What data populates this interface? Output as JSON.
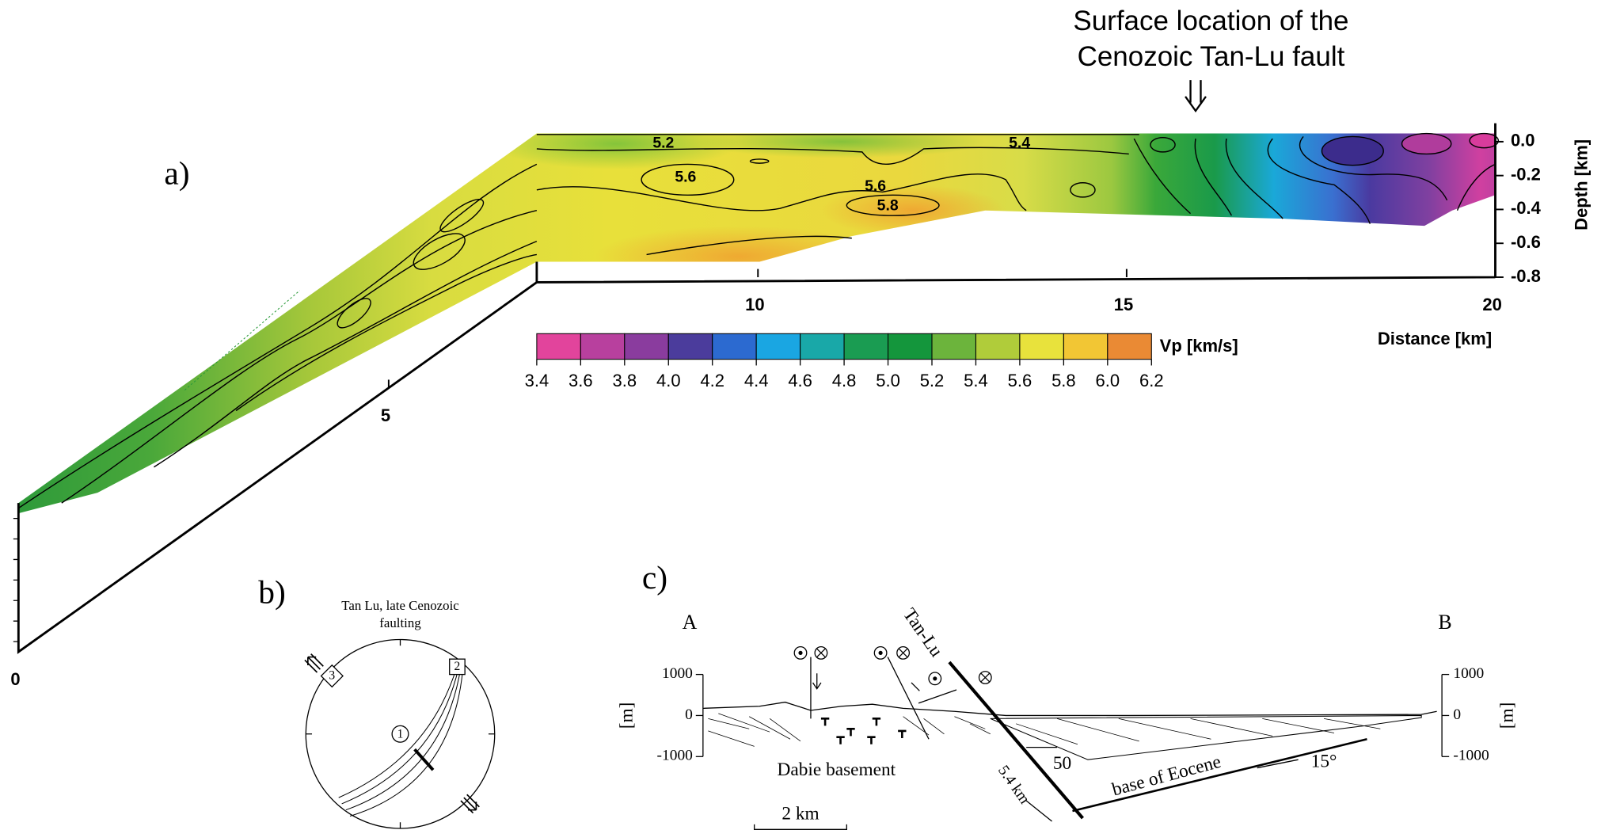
{
  "panel_a": {
    "label": "a)",
    "annotation": [
      "Surface location of the",
      "Cenozoic Tan-Lu fault"
    ],
    "x_label": "Distance [km]",
    "y_label": "Depth [km]",
    "xlim": [
      0,
      20
    ],
    "xticks": [
      0,
      5,
      10,
      15,
      20
    ],
    "ylim": [
      -0.8,
      0
    ],
    "yticks": [
      {
        "value": 0,
        "label": "0.0"
      },
      {
        "value": -0.2,
        "label": "-0.2"
      },
      {
        "value": -0.4,
        "label": "-0.4"
      },
      {
        "value": -0.6,
        "label": "-0.6"
      },
      {
        "value": -0.8,
        "label": "-0.8"
      }
    ],
    "contour_labels": [
      5.2,
      5.4,
      5.6,
      5.6,
      5.8
    ],
    "colorbar": {
      "label": "Vp [km/s]",
      "ticks": [
        3.4,
        3.6,
        3.8,
        {
          "value": 4,
          "label": "4.0"
        },
        4.2,
        4.4,
        4.6,
        4.8,
        {
          "value": 5,
          "label": "5.0"
        },
        5.2,
        5.4,
        5.6,
        5.8,
        {
          "value": 6,
          "label": "6.0"
        },
        6.2
      ],
      "colors": [
        "#e2449c",
        "#b8409e",
        "#8a3c9e",
        "#4b3c9c",
        "#2c6ad0",
        "#1aa6e2",
        "#19a8a8",
        "#1a9c52",
        "#14963c",
        "#6cb43c",
        "#b0cc3a",
        "#e8e23c",
        "#f2c634",
        "#ea8a34"
      ]
    }
  },
  "panel_b": {
    "label": "b)",
    "title": [
      "Tan Lu, late Cenozoic",
      "faulting"
    ],
    "markers": [
      "1",
      "2",
      "3"
    ]
  },
  "panel_c": {
    "label": "c)",
    "ends": [
      "A",
      "B"
    ],
    "fault_name": "Tan-Lu",
    "y_label_left": "[m]",
    "y_label_right": "[m]",
    "ylim": [
      -1000,
      1000
    ],
    "yticks": [
      1000,
      0,
      -1000
    ],
    "texts": [
      "Dabie basement",
      "50",
      "base of Eocene",
      "15°",
      "5.4 km"
    ],
    "scale": "2 km"
  }
}
